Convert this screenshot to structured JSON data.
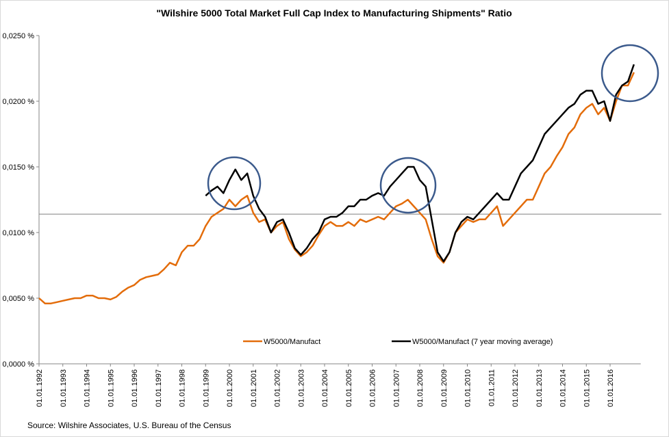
{
  "chart_data": {
    "type": "line",
    "title": "\"Wilshire 5000 Total Market Full Cap Index to Manufacturing Shipments\" Ratio",
    "source": "Source: Wilshire Associates, U.S. Bureau of the Census",
    "categories": [
      "01.01.1992",
      null,
      null,
      null,
      "01.01.1993",
      null,
      null,
      null,
      "01.01.1994",
      null,
      null,
      null,
      "01.01.1995",
      null,
      null,
      null,
      "01.01.1996",
      null,
      null,
      null,
      "01.01.1997",
      null,
      null,
      null,
      "01.01.1998",
      null,
      null,
      null,
      "01.01.1999",
      null,
      null,
      null,
      "01.01.2000",
      null,
      null,
      null,
      "01.01.2001",
      null,
      null,
      null,
      "01.01.2002",
      null,
      null,
      null,
      "01.01.2003",
      null,
      null,
      null,
      "01.01.2004",
      null,
      null,
      null,
      "01.01.2005",
      null,
      null,
      null,
      "01.01.2006",
      null,
      null,
      null,
      "01.01.2007",
      null,
      null,
      null,
      "01.01.2008",
      null,
      null,
      null,
      "01.01.2009",
      null,
      null,
      null,
      "01.01.2010",
      null,
      null,
      null,
      "01.01.2011",
      null,
      null,
      null,
      "01.01.2012",
      null,
      null,
      null,
      "01.01.2013",
      null,
      null,
      null,
      "01.01.2014",
      null,
      null,
      null,
      "01.01.2015",
      null,
      null,
      null,
      "01.01.2016",
      null,
      null,
      null,
      null
    ],
    "series": [
      {
        "name": "W5000/Manufact",
        "color": "#e36c0a",
        "values": [
          0.005,
          0.0046,
          0.0046,
          0.0047,
          0.0048,
          0.0049,
          0.005,
          0.005,
          0.0052,
          0.0052,
          0.005,
          0.005,
          0.0049,
          0.0051,
          0.0055,
          0.0058,
          0.006,
          0.0064,
          0.0066,
          0.0067,
          0.0068,
          0.0072,
          0.0077,
          0.0075,
          0.0085,
          0.009,
          0.009,
          0.0095,
          0.0105,
          0.0112,
          0.0115,
          0.0118,
          0.0125,
          0.012,
          0.0125,
          0.0128,
          0.0115,
          0.0108,
          0.011,
          0.01,
          0.0105,
          0.0108,
          0.0095,
          0.0087,
          0.0082,
          0.0085,
          0.009,
          0.0098,
          0.0105,
          0.0108,
          0.0105,
          0.0105,
          0.0108,
          0.0105,
          0.011,
          0.0108,
          0.011,
          0.0112,
          0.011,
          0.0115,
          0.012,
          0.0122,
          0.0125,
          0.012,
          0.0115,
          0.011,
          0.0095,
          0.0082,
          0.0077,
          0.0085,
          0.01,
          0.0105,
          0.011,
          0.0108,
          0.011,
          0.011,
          0.0115,
          0.012,
          0.0105,
          0.011,
          0.0115,
          0.012,
          0.0125,
          0.0125,
          0.0135,
          0.0145,
          0.015,
          0.0158,
          0.0165,
          0.0175,
          0.018,
          0.019,
          0.0195,
          0.0198,
          0.019,
          0.0195,
          0.0185,
          0.02,
          0.0212,
          0.0212,
          0.0222
        ]
      },
      {
        "name": "W5000/Manufact (7 year moving average)",
        "color": "#000000",
        "values": [
          null,
          null,
          null,
          null,
          null,
          null,
          null,
          null,
          null,
          null,
          null,
          null,
          null,
          null,
          null,
          null,
          null,
          null,
          null,
          null,
          null,
          null,
          null,
          null,
          null,
          null,
          null,
          null,
          0.0128,
          0.0132,
          0.0135,
          0.013,
          0.014,
          0.0148,
          0.014,
          0.0145,
          0.0128,
          0.0118,
          0.0112,
          0.01,
          0.0108,
          0.011,
          0.01,
          0.0088,
          0.0083,
          0.0088,
          0.0095,
          0.01,
          0.011,
          0.0112,
          0.0112,
          0.0115,
          0.012,
          0.012,
          0.0125,
          0.0125,
          0.0128,
          0.013,
          0.0128,
          0.0135,
          0.014,
          0.0145,
          0.015,
          0.015,
          0.014,
          0.0135,
          0.011,
          0.0085,
          0.0078,
          0.0085,
          0.01,
          0.0108,
          0.0112,
          0.011,
          0.0115,
          0.012,
          0.0125,
          0.013,
          0.0125,
          0.0125,
          0.0135,
          0.0145,
          0.015,
          0.0155,
          0.0165,
          0.0175,
          0.018,
          0.0185,
          0.019,
          0.0195,
          0.0198,
          0.0205,
          0.0208,
          0.0208,
          0.0198,
          0.02,
          0.0185,
          0.0205,
          0.0212,
          0.0215,
          0.0228
        ]
      }
    ],
    "reference_line": 0.0114,
    "ylim": [
      0,
      0.025
    ],
    "yticks": [
      {
        "value": 0,
        "label": "0,0000 %"
      },
      {
        "value": 0.005,
        "label": "0,0050 %"
      },
      {
        "value": 0.01,
        "label": "0,0100 %"
      },
      {
        "value": 0.015,
        "label": "0,0150 %"
      },
      {
        "value": 0.02,
        "label": "0,0200 %"
      },
      {
        "value": 0.025,
        "label": "0,0250 %"
      }
    ]
  }
}
